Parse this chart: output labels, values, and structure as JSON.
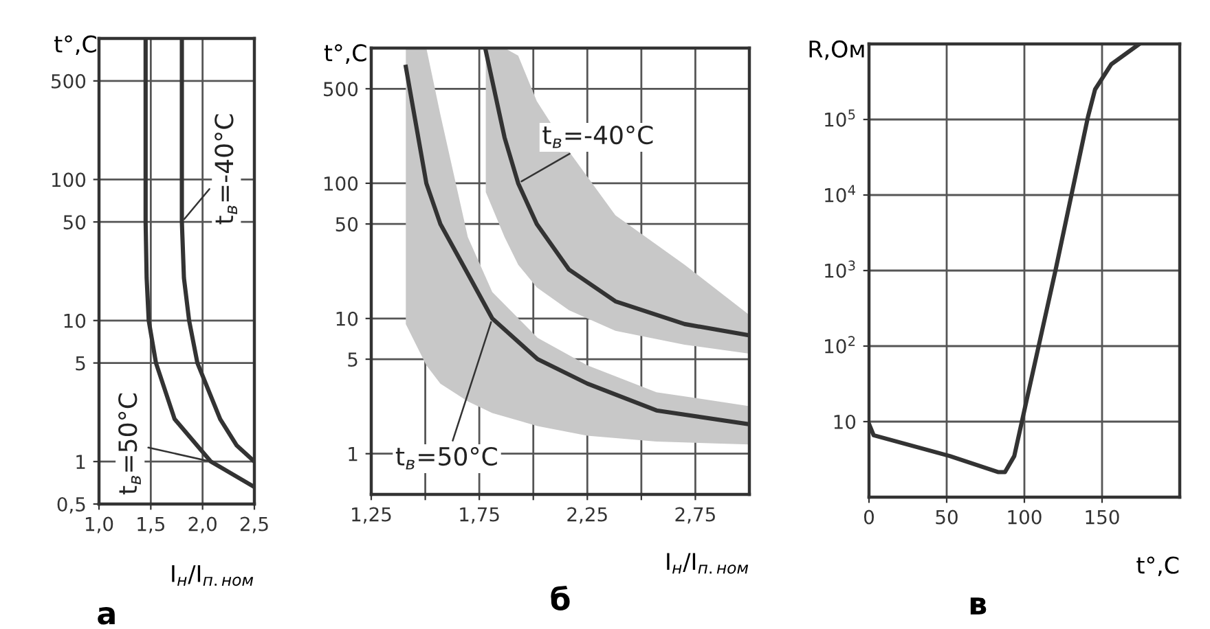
{
  "chart_data": [
    {
      "type": "line",
      "log": "y",
      "xlabel": "I$_{н}$/I$_{п.ном}$",
      "ylabel": "t°,C",
      "annotations": [
        "а"
      ],
      "xlim": [
        1.0,
        2.5
      ],
      "xticks": [
        {
          "value": 1.0,
          "label": "1,0"
        },
        {
          "value": 1.5,
          "label": "1,5"
        },
        {
          "value": 2.0,
          "label": "2,0"
        },
        {
          "value": 2.5,
          "label": "2,5"
        }
      ],
      "ylim": [
        0.5,
        1000
      ],
      "yticks": [
        {
          "value": 0.5,
          "label": "0,5"
        },
        1,
        5,
        10,
        50,
        100,
        500
      ],
      "grid": true,
      "line_style": "solid",
      "series": [
        {
          "name": "t$_{в}$=50°C",
          "color": "#333333",
          "x": [
            1.45,
            1.45,
            1.46,
            1.48,
            1.55,
            1.73,
            2.08,
            2.5
          ],
          "values": [
            1000,
            50,
            20,
            10,
            5,
            2,
            1,
            0.66
          ]
        },
        {
          "name": "t$_{в}$=-40°C",
          "color": "#333333",
          "x": [
            1.8,
            1.8,
            1.82,
            1.87,
            1.95,
            2.17,
            2.33,
            2.5
          ],
          "values": [
            1000,
            50,
            20,
            10,
            5,
            2,
            1.3,
            1.0
          ]
        }
      ]
    },
    {
      "type": "line",
      "log": "y",
      "xlabel": "I$_{н}$/I$_{п.ном}$",
      "ylabel": "t°,C",
      "annotations": [
        "б"
      ],
      "xlim": [
        1.25,
        3.0
      ],
      "xticks": [
        {
          "value": 1.25,
          "label": "1,25"
        },
        {
          "value": 1.5,
          "label": null
        },
        {
          "value": 1.75,
          "label": "1,75"
        },
        {
          "value": 2.0,
          "label": null
        },
        {
          "value": 2.25,
          "label": "2,25"
        },
        {
          "value": 2.5,
          "label": null
        },
        {
          "value": 2.75,
          "label": "2,75"
        }
      ],
      "ylim": [
        0.5,
        1000
      ],
      "yticks": [
        1,
        5,
        10,
        50,
        100,
        500
      ],
      "grid": true,
      "line_style": "solid",
      "series": [
        {
          "name": "t$_{в}$=50°C",
          "color": "#333333",
          "x": [
            1.41,
            1.505,
            1.57,
            1.697,
            1.81,
            2.02,
            2.25,
            2.57,
            3.0
          ],
          "values": [
            727,
            100,
            50,
            21.4,
            10,
            5,
            3.3,
            2.09,
            1.65
          ],
          "lower": [
            9.1,
            4.5,
            3.3,
            2.44,
            2.0,
            1.6,
            1.36,
            1.23,
            1.17
          ],
          "upper": [
            1000,
            1000,
            322,
            40,
            15.7,
            7.2,
            4.5,
            2.85,
            2.25
          ]
        },
        {
          "name": "t$_{в}$=-40°C",
          "color": "#333333",
          "x": [
            1.78,
            1.867,
            1.93,
            2.016,
            2.165,
            2.38,
            2.7,
            3.0
          ],
          "values": [
            955,
            218,
            100,
            50,
            23,
            13.4,
            9.1,
            7.5
          ],
          "lower": [
            86,
            40,
            25,
            17,
            11.5,
            8.1,
            6.4,
            5.5
          ],
          "upper": [
            1000,
            1000,
            880,
            405,
            172,
            58,
            25,
            10.6
          ]
        }
      ]
    },
    {
      "type": "line",
      "log": "y",
      "xlabel": "t°,C",
      "ylabel": "R,Ом",
      "annotations": [
        "в"
      ],
      "xlim": [
        0,
        200
      ],
      "xticks": [
        0,
        50,
        100,
        150
      ],
      "ylim": [
        1,
        1000000
      ],
      "yticks": [
        10,
        {
          "value": 100,
          "label": "10$^{2}$"
        },
        {
          "value": 1000,
          "label": "10$^{3}$"
        },
        {
          "value": 10000,
          "label": "10$^{4}$"
        },
        {
          "value": 100000,
          "label": "10$^{5}$"
        }
      ],
      "grid": true,
      "line_style": "solid",
      "series": [
        {
          "color": "#333333",
          "x": [
            0,
            3,
            52,
            83,
            87.5,
            93.5,
            101,
            120,
            141,
            145.5,
            156,
            174
          ],
          "values": [
            9.3,
            6.6,
            3.5,
            2.15,
            2.15,
            3.5,
            17.5,
            1000,
            110000,
            250000,
            540000,
            1000000
          ]
        }
      ]
    }
  ]
}
